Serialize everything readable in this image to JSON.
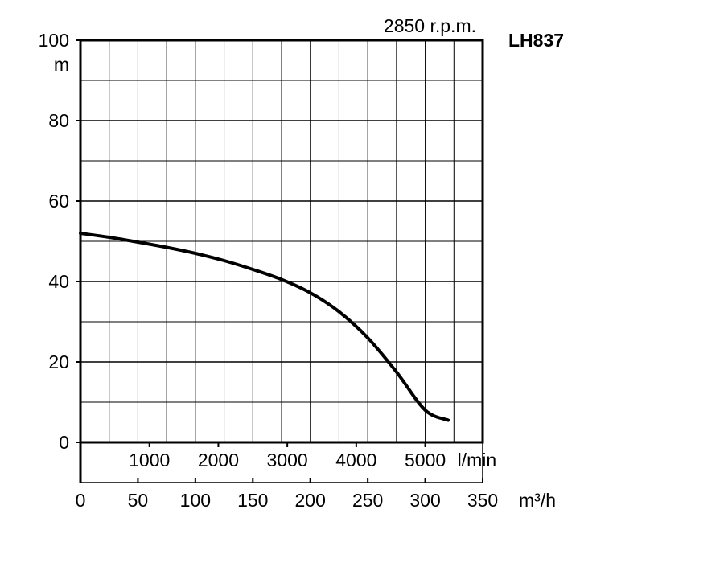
{
  "chart_data": {
    "type": "line",
    "model": "LH837",
    "speed_label": "2850 r.p.m.",
    "y_axis": {
      "unit": "m",
      "min": 0,
      "max": 100,
      "ticks": [
        0,
        20,
        40,
        60,
        80,
        100
      ]
    },
    "x_axis_lmin": {
      "unit": "l/min",
      "ticks": [
        1000,
        2000,
        3000,
        4000,
        5000
      ]
    },
    "x_axis_m3h": {
      "unit": "m³/h",
      "min": 0,
      "max": 350,
      "ticks": [
        0,
        50,
        100,
        150,
        200,
        250,
        300,
        350
      ]
    },
    "grid": true,
    "series": [
      {
        "x_m3h": [
          0,
          25,
          50,
          75,
          100,
          125,
          150,
          175,
          200,
          225,
          250,
          275,
          300,
          320
        ],
        "head_m": [
          52,
          51,
          49.8,
          48.5,
          47,
          45.2,
          43,
          40.5,
          37.2,
          32.5,
          26,
          17.5,
          8,
          5.5
        ]
      }
    ]
  }
}
